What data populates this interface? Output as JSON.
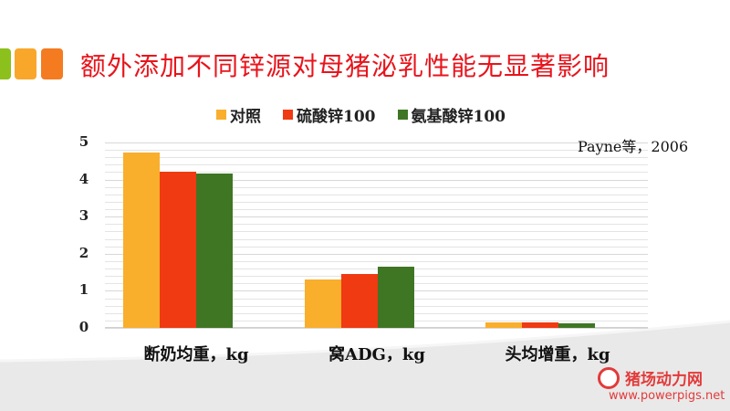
{
  "slide": {
    "title": "额外添加不同锌源对母猪泌乳性能无显著影响",
    "title_color": "#e8141c",
    "title_squares": [
      "#8cc01c",
      "#f9a72b",
      "#f47b20"
    ],
    "citation": "Payne等，2006"
  },
  "legend": [
    {
      "label": "对照",
      "color": "#f9ae2c"
    },
    {
      "label": "硫酸锌100",
      "color": "#f03a12"
    },
    {
      "label": "氨基酸锌100",
      "color": "#3f7624"
    }
  ],
  "yticks": [
    "0",
    "1",
    "2",
    "3",
    "4",
    "5"
  ],
  "xlabels": [
    "断奶均重，kg",
    "窝ADG，kg",
    "头均增重，kg"
  ],
  "watermark": {
    "name": "猪场动力网",
    "url": "www.powerpigs.net"
  },
  "chart_data": {
    "type": "bar",
    "title": "额外添加不同锌源对母猪泌乳性能无显著影响",
    "categories": [
      "断奶均重，kg",
      "窝ADG，kg",
      "头均增重，kg"
    ],
    "series": [
      {
        "name": "对照",
        "color": "#f9ae2c",
        "values": [
          4.72,
          1.3,
          0.15
        ]
      },
      {
        "name": "硫酸锌100",
        "color": "#f03a12",
        "values": [
          4.2,
          1.45,
          0.15
        ]
      },
      {
        "name": "氨基酸锌100",
        "color": "#3f7624",
        "values": [
          4.16,
          1.64,
          0.12
        ]
      }
    ],
    "xlabel": "",
    "ylabel": "",
    "ylim": [
      0,
      5
    ],
    "yticks": [
      0,
      1,
      2,
      3,
      4,
      5
    ],
    "grid": true,
    "minor_grid_step": 0.2,
    "legend_position": "top",
    "annotation": "Payne等，2006"
  }
}
